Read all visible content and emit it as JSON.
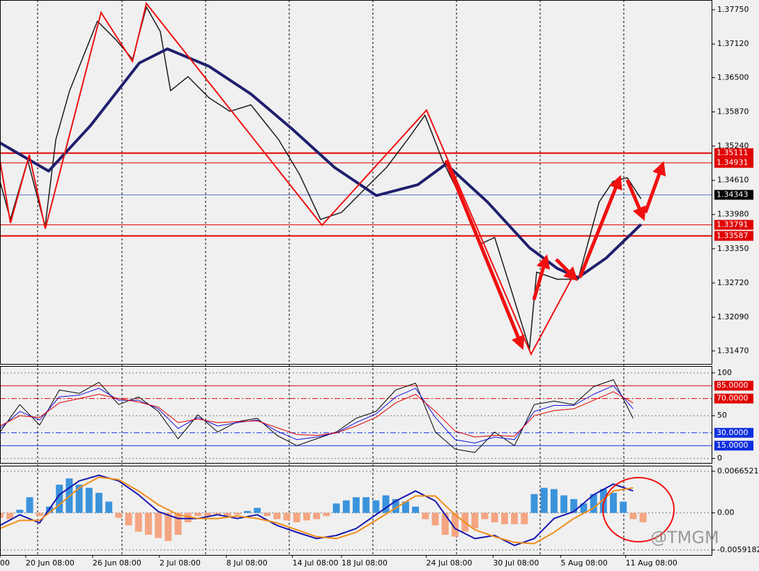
{
  "watermark": "@TMGM",
  "chart_data": [
    {
      "type": "line",
      "ylim": [
        1.3123,
        1.3793
      ],
      "yticks": [
        {
          "value": 1.3775,
          "label": "1.37750"
        },
        {
          "value": 1.3712,
          "label": "1.37120"
        },
        {
          "value": 1.365,
          "label": "1.36500"
        },
        {
          "value": 1.3587,
          "label": "1.35870"
        },
        {
          "value": 1.3524,
          "label": "1.35240"
        },
        {
          "value": 1.3461,
          "label": "1.34610"
        },
        {
          "value": 1.3398,
          "label": "1.33980"
        },
        {
          "value": 1.3335,
          "label": "1.33350"
        },
        {
          "value": 1.3272,
          "label": "1.32720"
        },
        {
          "value": 1.3209,
          "label": "1.32090"
        },
        {
          "value": 1.3147,
          "label": "1.31470"
        }
      ],
      "grid": false,
      "levels": [
        {
          "value": 1.35111,
          "color": "#e00000",
          "box": "#e00000",
          "width": 2,
          "dash": "solid"
        },
        {
          "value": 1.34931,
          "color": "#e00000",
          "box": "#e00000",
          "width": 1,
          "dash": "solid"
        },
        {
          "value": 1.34343,
          "color": "#5a78d0",
          "box": "#000000",
          "width": 1,
          "dash": "solid"
        },
        {
          "value": 1.33791,
          "color": "#e00000",
          "box": "#e00000",
          "width": 1,
          "dash": "solid"
        },
        {
          "value": 1.33587,
          "color": "#e00000",
          "box": "#e00000",
          "width": 2,
          "dash": "solid"
        }
      ],
      "series": [
        {
          "color": "#1a1a1a",
          "width": 1.5,
          "x": [
            0,
            2.6,
            7,
            11.4,
            14.1,
            17.6,
            24.6,
            29,
            33.5,
            37,
            40.5,
            43.1,
            47.5,
            52.8,
            58.1,
            63.4,
            70.4,
            75.7,
            81,
            86.3,
            91.5,
            97.7,
            103,
            107.4,
            111.8,
            116.2,
            121.5,
            125,
            129.4,
            133.8,
            135.6,
            140.8,
            146.1,
            151.4,
            154.9,
            158.5,
            162
          ],
          "values": [
            1.3459,
            1.3389,
            1.3498,
            1.3376,
            1.3536,
            1.3626,
            1.3754,
            1.3722,
            1.3684,
            1.378,
            1.3735,
            1.3626,
            1.3652,
            1.3613,
            1.3588,
            1.36,
            1.3536,
            1.3472,
            1.3389,
            1.3402,
            1.344,
            1.3485,
            1.3536,
            1.3581,
            1.3498,
            1.3433,
            1.3344,
            1.3356,
            1.3254,
            1.3151,
            1.3292,
            1.3279,
            1.3279,
            1.3421,
            1.3459,
            1.3466,
            1.3427
          ]
        },
        {
          "color": "#1f1f6e",
          "width": 4,
          "x": [
            0,
            12.3,
            22.9,
            35.2,
            42.3,
            52.8,
            63.4,
            73.9,
            84.5,
            95.1,
            105.6,
            112.7,
            123.2,
            133.8,
            140.8,
            146.1,
            153.2,
            162
          ],
          "values": [
            1.353,
            1.3478,
            1.3562,
            1.3677,
            1.3703,
            1.3671,
            1.362,
            1.3555,
            1.3485,
            1.3433,
            1.3453,
            1.3491,
            1.3421,
            1.3337,
            1.3299,
            1.3282,
            1.3318,
            1.338
          ]
        }
      ]
    },
    {
      "type": "line",
      "ylim": [
        -6,
        108
      ],
      "yticks": [
        0,
        50,
        100
      ],
      "grid": true,
      "x": [
        0,
        5,
        10,
        15,
        20,
        25,
        30,
        35,
        40,
        45,
        50,
        55,
        60,
        65,
        70,
        75,
        80,
        85,
        90,
        95,
        100,
        105,
        110,
        115,
        120,
        125,
        130,
        135,
        140,
        145,
        150,
        155,
        160
      ],
      "levels": [
        {
          "value": 85,
          "label": "85.0000",
          "color": "#e00000",
          "box": "#e00000",
          "width": 1,
          "dash": "solid"
        },
        {
          "value": 70,
          "label": "70.0000",
          "color": "#e00000",
          "box": "#e00000",
          "width": 1,
          "dash": "dashdot"
        },
        {
          "value": 30,
          "label": "30.0000",
          "color": "#1030e0",
          "box": "#1030e0",
          "width": 1,
          "dash": "dashdot"
        },
        {
          "value": 15,
          "label": "15.0000",
          "color": "#1030e0",
          "box": "#1030e0",
          "width": 1,
          "dash": "solid"
        }
      ],
      "series": [
        {
          "color": "#000000",
          "width": 1,
          "values": [
            31,
            63,
            39,
            80,
            76,
            89,
            63,
            72,
            55,
            23,
            51,
            31,
            43,
            47,
            27,
            15,
            23,
            31,
            47,
            55,
            80,
            88,
            31,
            11,
            7,
            31,
            15,
            63,
            67,
            63,
            84,
            92,
            47
          ]
        },
        {
          "color": "#1010e0",
          "width": 1,
          "values": [
            35,
            55,
            45,
            72,
            74,
            82,
            68,
            68,
            58,
            35,
            48,
            38,
            42,
            45,
            32,
            22,
            25,
            30,
            42,
            52,
            72,
            82,
            48,
            22,
            18,
            25,
            22,
            55,
            62,
            62,
            75,
            85,
            58
          ]
        },
        {
          "color": "#e00000",
          "width": 1,
          "values": [
            38,
            50,
            48,
            65,
            70,
            75,
            70,
            66,
            60,
            42,
            46,
            42,
            43,
            44,
            36,
            28,
            27,
            30,
            38,
            48,
            65,
            75,
            55,
            32,
            25,
            27,
            26,
            50,
            56,
            58,
            68,
            78,
            65
          ]
        }
      ]
    },
    {
      "type": "bar",
      "xlim": [
        0,
        180
      ],
      "xticks": [
        {
          "value": 0,
          "label": "00"
        },
        {
          "value": 6.5,
          "label": "20 Jun 08:00"
        },
        {
          "value": 23.4,
          "label": "26 Jun 08:00"
        },
        {
          "value": 40.3,
          "label": "2 Jul 08:00"
        },
        {
          "value": 57.2,
          "label": "8 Jul 08:00"
        },
        {
          "value": 73.9,
          "label": "14 Jul 08:00"
        },
        {
          "value": 86.3,
          "label": "18 Jul 08:00"
        },
        {
          "value": 107.7,
          "label": "24 Jul 08:00"
        },
        {
          "value": 124.6,
          "label": "30 Jul 08:00"
        },
        {
          "value": 141.7,
          "label": "5 Aug 08:00"
        },
        {
          "value": 158.1,
          "label": "11 Aug 08:00"
        }
      ],
      "ylim": [
        -0.00683,
        0.00753
      ],
      "yticks": [
        0.0066521,
        {
          "value": 0,
          "label": "0.00"
        },
        -0.0059182
      ],
      "grid": true,
      "x": [
        0,
        5,
        10,
        15,
        20,
        25,
        30,
        35,
        40,
        45,
        50,
        55,
        60,
        65,
        70,
        75,
        80,
        85,
        90,
        95,
        100,
        105,
        110,
        115,
        120,
        125,
        130,
        135,
        140,
        145,
        150,
        155,
        160
      ],
      "levels": [],
      "series": [
        {
          "kind": "bar",
          "color": "#3b93dc",
          "negative_color": "#f4a582",
          "x": [
            0,
            2.5,
            5,
            7.5,
            10,
            12.5,
            15,
            17.5,
            20,
            22.5,
            25,
            27.5,
            30,
            32.5,
            35,
            37.5,
            40,
            42.5,
            45,
            47.5,
            50,
            52.5,
            55,
            57.5,
            60,
            62.5,
            65,
            67.5,
            70,
            72.5,
            75,
            77.5,
            80,
            82.5,
            85,
            87.5,
            90,
            92.5,
            95,
            97.5,
            100,
            102.5,
            105,
            107.5,
            110,
            112.5,
            115,
            117.5,
            120,
            122.5,
            125,
            127.5,
            130,
            132.5,
            135,
            137.5,
            140,
            142.5,
            145,
            147.5,
            150,
            152.5,
            155,
            157.5,
            160,
            162.5
          ],
          "values": [
            -0.0008,
            -0.001,
            0.0005,
            0.0025,
            -0.0005,
            0.001,
            0.0045,
            0.0055,
            0.0045,
            0.004,
            0.0032,
            0.0018,
            -0.0008,
            -0.002,
            -0.003,
            -0.0035,
            -0.004,
            -0.0045,
            -0.0035,
            -0.0015,
            -0.0005,
            -0.0005,
            -0.0003,
            -0.0005,
            -0.0003,
            0.0003,
            0.0008,
            -0.0005,
            -0.001,
            -0.0012,
            -0.0015,
            -0.0012,
            -0.001,
            -0.0005,
            0.0015,
            0.002,
            0.0025,
            0.0025,
            0.002,
            0.0028,
            0.0022,
            0.0018,
            0.001,
            -0.001,
            -0.002,
            -0.0035,
            -0.0038,
            -0.003,
            -0.0025,
            -0.001,
            -0.0015,
            -0.0018,
            -0.0018,
            -0.0018,
            0.003,
            0.004,
            0.0038,
            0.0028,
            0.0022,
            0.0015,
            0.003,
            0.0038,
            0.0032,
            0.0018,
            -0.001,
            -0.0015
          ]
        },
        {
          "color": "#1515b0",
          "width": 2,
          "values": [
            -0.002,
            -0.0003,
            -0.0016,
            0.0029,
            0.0051,
            0.006,
            0.0051,
            0.0029,
            0.0002,
            -0.0009,
            -0.0009,
            -0.0003,
            -0.0009,
            -0.0003,
            -0.002,
            -0.0031,
            -0.0041,
            -0.0036,
            -0.0025,
            -0.0003,
            0.0019,
            0.0035,
            0.0019,
            -0.0025,
            -0.0041,
            -0.0036,
            -0.0052,
            -0.0041,
            -0.0009,
            0.0002,
            0.0029,
            0.0046,
            0.0035
          ]
        },
        {
          "color": "#f08c1a",
          "width": 2,
          "values": [
            -0.0025,
            -0.0012,
            -0.0012,
            0.0013,
            0.004,
            0.0057,
            0.0053,
            0.0035,
            0.0013,
            -0.0003,
            -0.0009,
            -0.0009,
            -0.0005,
            -0.0009,
            -0.0016,
            -0.0027,
            -0.0038,
            -0.0041,
            -0.0031,
            -0.0012,
            0.0008,
            0.0027,
            0.0027,
            -0.0003,
            -0.0027,
            -0.0038,
            -0.0047,
            -0.0049,
            -0.0031,
            -0.0009,
            0.0008,
            0.0035,
            0.004
          ]
        }
      ]
    }
  ]
}
